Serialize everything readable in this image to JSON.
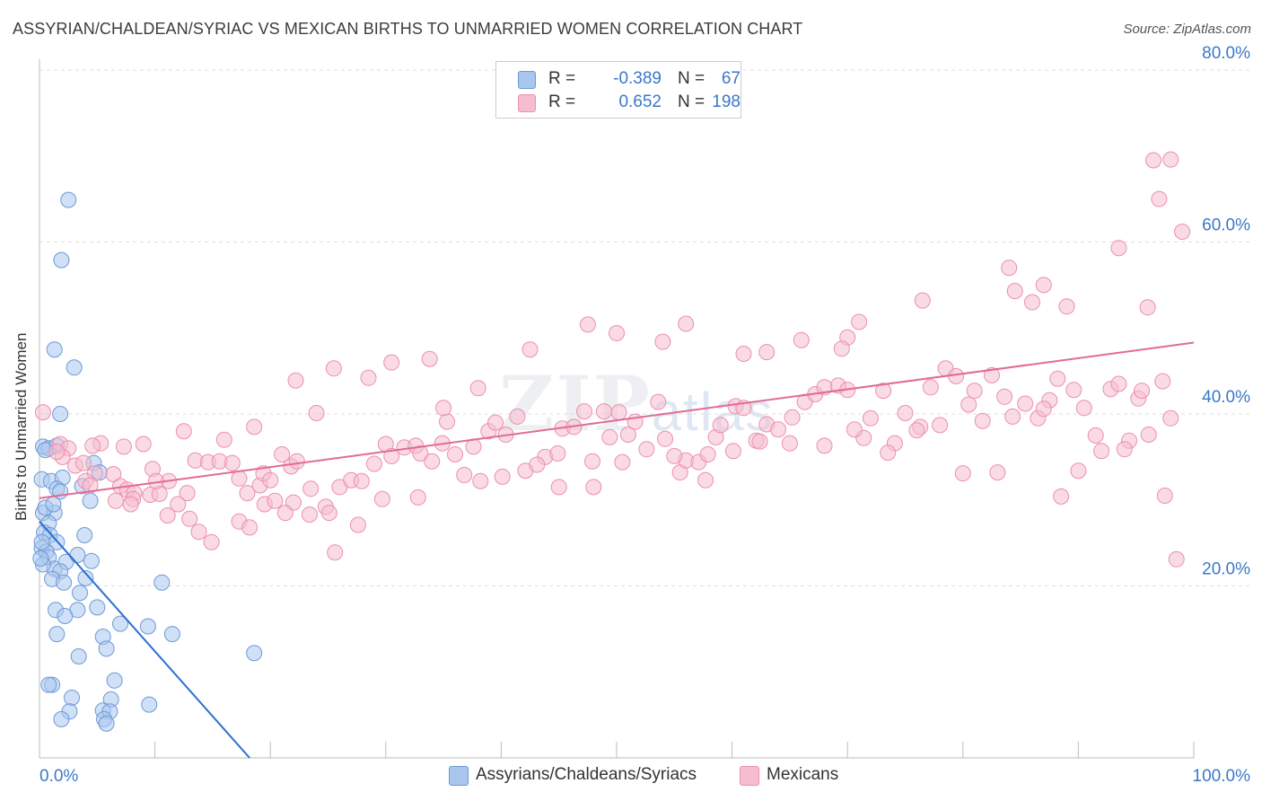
{
  "header": {
    "title": "ASSYRIAN/CHALDEAN/SYRIAC VS MEXICAN BIRTHS TO UNMARRIED WOMEN CORRELATION CHART",
    "source": "Source: ZipAtlas.com"
  },
  "watermark": {
    "zip": "ZIP",
    "atlas": "atlas"
  },
  "stats": {
    "series1": {
      "r_label": "R =",
      "r_value": "-0.389",
      "n_label": "N =",
      "n_value": "67",
      "color": "#7da7e0"
    },
    "series2": {
      "r_label": "R =",
      "r_value": "0.652",
      "n_label": "N =",
      "n_value": "198",
      "color": "#f19bb5"
    }
  },
  "legend": {
    "series1": "Assyrians/Chaldeans/Syriacs",
    "series2": "Mexicans"
  },
  "colors": {
    "blue_fill": "#a9c6ee",
    "blue_stroke": "#6d9ad6",
    "blue_line": "#2a6fd1",
    "pink_fill": "#f6bdd0",
    "pink_stroke": "#ec8fae",
    "pink_line": "#e26b95",
    "grid": "#dddddd",
    "tick_label": "#3a78c9"
  },
  "chart_data": {
    "type": "scatter",
    "title": "ASSYRIAN/CHALDEAN/SYRIAC VS MEXICAN BIRTHS TO UNMARRIED WOMEN CORRELATION CHART",
    "xlabel": "",
    "ylabel": "Births to Unmarried Women",
    "xlim": [
      0,
      100
    ],
    "ylim": [
      0,
      80
    ],
    "x_tick_labels": {
      "min": "0.0%",
      "max": "100.0%"
    },
    "y_ticks": [
      20,
      40,
      60,
      80
    ],
    "y_tick_labels": [
      "20.0%",
      "40.0%",
      "60.0%",
      "80.0%"
    ],
    "grid": true,
    "legend_position": "bottom-center",
    "series": [
      {
        "name": "Assyrians/Chaldeans/Syriacs",
        "r": -0.389,
        "n": 67,
        "trend": {
          "x": [
            0,
            18.2
          ],
          "y": [
            27.5,
            0
          ]
        },
        "points": [
          [
            2.5,
            64.9
          ],
          [
            1.9,
            57.9
          ],
          [
            1.3,
            47.5
          ],
          [
            3.0,
            45.4
          ],
          [
            1.8,
            40.0
          ],
          [
            0.3,
            36.2
          ],
          [
            0.8,
            36.0
          ],
          [
            1.5,
            36.3
          ],
          [
            0.5,
            35.8
          ],
          [
            4.7,
            34.3
          ],
          [
            5.2,
            33.2
          ],
          [
            0.2,
            32.4
          ],
          [
            1.0,
            32.2
          ],
          [
            2.0,
            32.6
          ],
          [
            1.5,
            31.3
          ],
          [
            1.8,
            31.0
          ],
          [
            3.7,
            31.6
          ],
          [
            4.4,
            29.9
          ],
          [
            0.3,
            28.5
          ],
          [
            1.3,
            28.5
          ],
          [
            0.8,
            27.3
          ],
          [
            0.4,
            26.2
          ],
          [
            0.9,
            25.9
          ],
          [
            1.5,
            25.1
          ],
          [
            0.2,
            24.4
          ],
          [
            0.6,
            24.0
          ],
          [
            3.9,
            25.9
          ],
          [
            0.8,
            23.3
          ],
          [
            1.3,
            22.0
          ],
          [
            0.3,
            22.5
          ],
          [
            2.3,
            22.8
          ],
          [
            3.3,
            23.6
          ],
          [
            4.5,
            22.9
          ],
          [
            1.8,
            21.7
          ],
          [
            1.1,
            20.8
          ],
          [
            2.1,
            20.4
          ],
          [
            4.0,
            20.9
          ],
          [
            10.6,
            20.4
          ],
          [
            3.5,
            19.2
          ],
          [
            1.4,
            17.2
          ],
          [
            3.3,
            17.2
          ],
          [
            5.0,
            17.5
          ],
          [
            2.2,
            16.5
          ],
          [
            7.0,
            15.6
          ],
          [
            9.4,
            15.3
          ],
          [
            11.5,
            14.4
          ],
          [
            1.5,
            14.4
          ],
          [
            5.5,
            14.1
          ],
          [
            5.8,
            12.7
          ],
          [
            3.4,
            11.8
          ],
          [
            18.6,
            12.2
          ],
          [
            6.5,
            9.0
          ],
          [
            1.1,
            8.5
          ],
          [
            0.8,
            8.5
          ],
          [
            2.8,
            7.0
          ],
          [
            6.2,
            6.8
          ],
          [
            9.5,
            6.2
          ],
          [
            2.6,
            5.4
          ],
          [
            5.5,
            5.5
          ],
          [
            6.1,
            5.4
          ],
          [
            1.9,
            4.5
          ],
          [
            5.6,
            4.5
          ],
          [
            5.8,
            4.0
          ],
          [
            0.2,
            25.1
          ],
          [
            0.1,
            23.2
          ],
          [
            0.5,
            29.1
          ],
          [
            1.2,
            29.5
          ]
        ]
      },
      {
        "name": "Mexicans",
        "r": 0.652,
        "n": 198,
        "trend": {
          "x": [
            0,
            100
          ],
          "y": [
            30.2,
            48.3
          ]
        },
        "points": [
          [
            0.3,
            40.2
          ],
          [
            1.8,
            36.5
          ],
          [
            2.5,
            36.0
          ],
          [
            5.3,
            36.6
          ],
          [
            2.0,
            35.0
          ],
          [
            3.1,
            34.0
          ],
          [
            4.8,
            33.1
          ],
          [
            4.0,
            32.2
          ],
          [
            6.4,
            33.0
          ],
          [
            9.8,
            33.6
          ],
          [
            7.0,
            31.6
          ],
          [
            7.6,
            31.2
          ],
          [
            8.2,
            30.8
          ],
          [
            9.6,
            30.6
          ],
          [
            10.4,
            30.7
          ],
          [
            8.1,
            30.1
          ],
          [
            6.6,
            29.9
          ],
          [
            7.9,
            29.5
          ],
          [
            11.2,
            32.2
          ],
          [
            10.1,
            32.2
          ],
          [
            12.8,
            30.8
          ],
          [
            12.0,
            29.5
          ],
          [
            13.5,
            34.6
          ],
          [
            14.6,
            34.4
          ],
          [
            15.6,
            34.5
          ],
          [
            16.7,
            34.3
          ],
          [
            17.3,
            32.5
          ],
          [
            18.0,
            30.8
          ],
          [
            19.1,
            31.7
          ],
          [
            19.4,
            33.1
          ],
          [
            20.0,
            32.3
          ],
          [
            21.0,
            35.3
          ],
          [
            21.8,
            33.9
          ],
          [
            22.3,
            34.5
          ],
          [
            23.5,
            31.3
          ],
          [
            22.0,
            29.7
          ],
          [
            24.8,
            29.2
          ],
          [
            25.1,
            28.5
          ],
          [
            26.0,
            31.5
          ],
          [
            27.0,
            32.3
          ],
          [
            27.9,
            32.2
          ],
          [
            29.0,
            34.2
          ],
          [
            30.0,
            36.5
          ],
          [
            30.5,
            35.1
          ],
          [
            31.6,
            36.1
          ],
          [
            32.6,
            36.3
          ],
          [
            33.0,
            35.4
          ],
          [
            34.0,
            34.5
          ],
          [
            34.9,
            36.6
          ],
          [
            35.3,
            39.1
          ],
          [
            36.0,
            35.3
          ],
          [
            37.6,
            36.2
          ],
          [
            38.9,
            38.0
          ],
          [
            39.5,
            39.0
          ],
          [
            40.4,
            37.6
          ],
          [
            41.4,
            39.7
          ],
          [
            42.1,
            33.4
          ],
          [
            43.8,
            35.0
          ],
          [
            44.9,
            35.4
          ],
          [
            45.3,
            38.3
          ],
          [
            46.3,
            38.5
          ],
          [
            47.2,
            40.3
          ],
          [
            47.9,
            34.5
          ],
          [
            48.9,
            40.3
          ],
          [
            49.4,
            37.3
          ],
          [
            50.2,
            40.2
          ],
          [
            51.0,
            37.6
          ],
          [
            51.6,
            39.1
          ],
          [
            52.6,
            35.9
          ],
          [
            53.6,
            41.4
          ],
          [
            54.2,
            37.1
          ],
          [
            55.5,
            33.2
          ],
          [
            56.0,
            34.6
          ],
          [
            57.1,
            34.4
          ],
          [
            57.9,
            35.3
          ],
          [
            58.6,
            37.3
          ],
          [
            59.0,
            38.7
          ],
          [
            60.3,
            40.9
          ],
          [
            61.0,
            40.7
          ],
          [
            62.1,
            36.9
          ],
          [
            63.0,
            38.8
          ],
          [
            64.0,
            38.2
          ],
          [
            65.2,
            39.6
          ],
          [
            66.3,
            41.4
          ],
          [
            67.2,
            42.3
          ],
          [
            68.0,
            43.1
          ],
          [
            69.2,
            43.3
          ],
          [
            70.0,
            42.8
          ],
          [
            71.4,
            37.2
          ],
          [
            72.0,
            39.5
          ],
          [
            73.1,
            42.7
          ],
          [
            74.1,
            36.6
          ],
          [
            75.0,
            40.1
          ],
          [
            76.3,
            38.5
          ],
          [
            77.2,
            43.1
          ],
          [
            78.5,
            45.3
          ],
          [
            79.4,
            44.4
          ],
          [
            80.5,
            41.1
          ],
          [
            81.0,
            42.7
          ],
          [
            81.7,
            39.2
          ],
          [
            82.5,
            44.5
          ],
          [
            83.6,
            42.0
          ],
          [
            84.3,
            39.7
          ],
          [
            85.4,
            41.2
          ],
          [
            86.5,
            39.5
          ],
          [
            87.5,
            41.6
          ],
          [
            88.2,
            44.1
          ],
          [
            89.6,
            42.8
          ],
          [
            90.5,
            40.7
          ],
          [
            91.5,
            37.5
          ],
          [
            92.8,
            42.9
          ],
          [
            93.5,
            43.5
          ],
          [
            94.4,
            36.9
          ],
          [
            95.2,
            41.8
          ],
          [
            96.1,
            37.6
          ],
          [
            97.3,
            43.8
          ],
          [
            98.0,
            39.5
          ],
          [
            1.5,
            35.6
          ],
          [
            4.4,
            31.7
          ],
          [
            11.1,
            28.2
          ],
          [
            13.0,
            27.8
          ],
          [
            13.8,
            26.3
          ],
          [
            14.9,
            25.1
          ],
          [
            17.3,
            27.5
          ],
          [
            18.2,
            26.8
          ],
          [
            19.5,
            29.5
          ],
          [
            20.4,
            29.9
          ],
          [
            21.3,
            28.5
          ],
          [
            23.4,
            28.3
          ],
          [
            25.6,
            23.9
          ],
          [
            27.6,
            27.1
          ],
          [
            29.7,
            30.1
          ],
          [
            32.8,
            30.3
          ],
          [
            36.8,
            32.9
          ],
          [
            38.2,
            32.2
          ],
          [
            40.1,
            32.7
          ],
          [
            43.1,
            34.1
          ],
          [
            45.0,
            31.5
          ],
          [
            48.0,
            31.5
          ],
          [
            50.5,
            34.4
          ],
          [
            55.0,
            35.1
          ],
          [
            57.7,
            32.3
          ],
          [
            60.1,
            35.7
          ],
          [
            62.4,
            36.8
          ],
          [
            65.0,
            36.6
          ],
          [
            68.0,
            36.3
          ],
          [
            70.6,
            38.2
          ],
          [
            73.5,
            35.5
          ],
          [
            76.0,
            38.1
          ],
          [
            78.0,
            38.7
          ],
          [
            80.0,
            33.1
          ],
          [
            83.0,
            33.2
          ],
          [
            87.0,
            40.6
          ],
          [
            88.5,
            30.4
          ],
          [
            90.0,
            33.4
          ],
          [
            92.0,
            35.7
          ],
          [
            94.0,
            35.9
          ],
          [
            95.5,
            42.7
          ],
          [
            97.5,
            30.5
          ],
          [
            98.5,
            23.1
          ],
          [
            96.5,
            69.5
          ],
          [
            98.0,
            69.6
          ],
          [
            97.0,
            65.0
          ],
          [
            99.0,
            61.2
          ],
          [
            93.5,
            59.3
          ],
          [
            84.0,
            57.0
          ],
          [
            87.0,
            55.0
          ],
          [
            84.5,
            54.3
          ],
          [
            96.0,
            52.4
          ],
          [
            89.0,
            52.5
          ],
          [
            86.0,
            53.0
          ],
          [
            76.5,
            53.2
          ],
          [
            71.0,
            50.7
          ],
          [
            66.0,
            48.6
          ],
          [
            70.0,
            48.9
          ],
          [
            63.0,
            47.2
          ],
          [
            61.0,
            47.0
          ],
          [
            69.5,
            47.6
          ],
          [
            56.0,
            50.5
          ],
          [
            54.0,
            48.4
          ],
          [
            50.0,
            49.4
          ],
          [
            47.5,
            50.4
          ],
          [
            42.5,
            47.5
          ],
          [
            33.8,
            46.4
          ],
          [
            28.5,
            44.2
          ],
          [
            25.5,
            45.3
          ],
          [
            22.2,
            43.9
          ],
          [
            30.5,
            46.0
          ],
          [
            38.0,
            43.0
          ],
          [
            35.0,
            40.7
          ],
          [
            24.0,
            40.1
          ],
          [
            18.6,
            38.5
          ],
          [
            16.0,
            37.0
          ],
          [
            12.5,
            38.0
          ],
          [
            9.0,
            36.5
          ],
          [
            7.3,
            36.2
          ],
          [
            4.6,
            36.3
          ],
          [
            3.8,
            34.3
          ]
        ]
      }
    ]
  }
}
